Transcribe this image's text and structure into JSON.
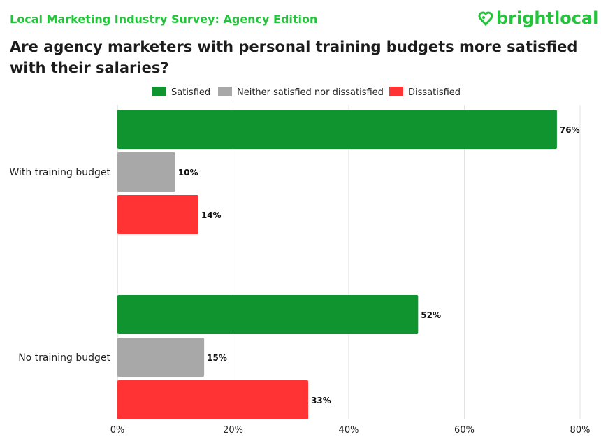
{
  "header": {
    "survey": "Local Marketing Industry Survey: Agency Edition",
    "logo": "brightlocal"
  },
  "chart_data": {
    "type": "bar",
    "orientation": "horizontal",
    "title": "Are agency marketers with personal training budgets more satisfied with their salaries?",
    "categories": [
      "With training budget",
      "No training budget"
    ],
    "series": [
      {
        "name": "Satisfied",
        "color": "#0f9430",
        "values": [
          76,
          52
        ]
      },
      {
        "name": "Neither satisfied nor dissatisfied",
        "color": "#a8a8a8",
        "values": [
          10,
          15
        ]
      },
      {
        "name": "Dissatisfied",
        "color": "#ff3333",
        "values": [
          14,
          33
        ]
      }
    ],
    "xlim": [
      0,
      80
    ],
    "xticks": [
      "0%",
      "20%",
      "40%",
      "60%",
      "80%"
    ],
    "grid": true,
    "legend": "top"
  }
}
